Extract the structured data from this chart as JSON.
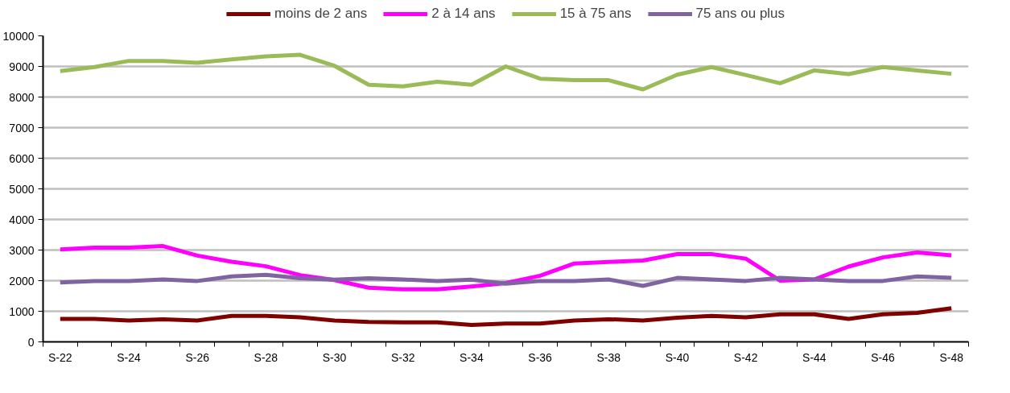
{
  "chart_data": {
    "type": "line",
    "categories": [
      "S-22",
      null,
      "S-24",
      null,
      "S-26",
      null,
      "S-28",
      null,
      "S-30",
      null,
      "S-32",
      null,
      "S-34",
      null,
      "S-36",
      null,
      "S-38",
      null,
      "S-40",
      null,
      "S-42",
      null,
      "S-44",
      null,
      "S-46",
      null,
      "S-48"
    ],
    "series": [
      {
        "name": "moins de 2 ans",
        "color": "#800000",
        "values": [
          750,
          750,
          700,
          740,
          700,
          850,
          850,
          800,
          700,
          650,
          640,
          640,
          550,
          600,
          600,
          700,
          740,
          700,
          790,
          850,
          800,
          900,
          900,
          750,
          900,
          950,
          1100
        ]
      },
      {
        "name": "2 à 14 ans",
        "color": "#ff00ff",
        "values": [
          3020,
          3080,
          3080,
          3130,
          2820,
          2620,
          2470,
          2180,
          2020,
          1770,
          1720,
          1720,
          1810,
          1920,
          2160,
          2560,
          2610,
          2660,
          2870,
          2870,
          2720,
          2000,
          2040,
          2460,
          2760,
          2920,
          2830
        ]
      },
      {
        "name": "15 à 75 ans",
        "color": "#9bbb59",
        "values": [
          8850,
          8980,
          9180,
          9180,
          9120,
          9230,
          9330,
          9380,
          9020,
          8400,
          8350,
          8500,
          8400,
          9000,
          8600,
          8550,
          8550,
          8250,
          8730,
          8980,
          8720,
          8450,
          8870,
          8750,
          8980,
          8870,
          8760
        ]
      },
      {
        "name": "75 ans ou plus",
        "color": "#8064a2",
        "values": [
          1940,
          1990,
          1990,
          2040,
          1990,
          2140,
          2190,
          2080,
          2030,
          2080,
          2040,
          1990,
          2030,
          1900,
          1990,
          1990,
          2040,
          1830,
          2090,
          2040,
          1990,
          2090,
          2040,
          1990,
          1990,
          2140,
          2090
        ]
      }
    ],
    "ylim": [
      0,
      10000
    ],
    "yticks": [
      0,
      1000,
      2000,
      3000,
      4000,
      5000,
      6000,
      7000,
      8000,
      9000,
      10000
    ],
    "grid": "y",
    "legend": "top",
    "marker": "none",
    "line_style": "solid"
  }
}
